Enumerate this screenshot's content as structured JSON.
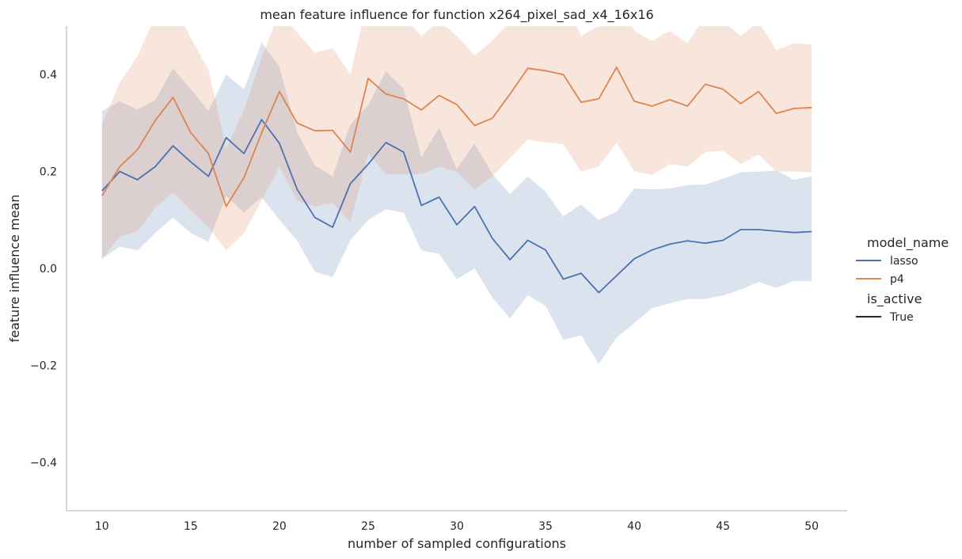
{
  "chart_data": {
    "type": "line",
    "title": "mean feature influence for function x264_pixel_sad_x4_16x16",
    "xlabel": "number of sampled configurations",
    "ylabel": "feature influence mean",
    "xlim": [
      8,
      52
    ],
    "ylim": [
      -0.5,
      0.5
    ],
    "xticks": [
      10,
      15,
      20,
      25,
      30,
      35,
      40,
      45,
      50
    ],
    "yticks": [
      -0.4,
      -0.2,
      0.0,
      0.2,
      0.4
    ],
    "ytick_labels": [
      "−0.4",
      "−0.2",
      "0.0",
      "0.2",
      "0.4"
    ],
    "grid": false,
    "legend": {
      "placement": "right",
      "hue_title": "model_name",
      "style_title": "is_active",
      "style_entries": [
        {
          "label": "True",
          "color": "#262626"
        }
      ]
    },
    "x": [
      10,
      11,
      12,
      13,
      14,
      15,
      16,
      17,
      18,
      19,
      20,
      21,
      22,
      23,
      24,
      25,
      26,
      27,
      28,
      29,
      30,
      31,
      32,
      33,
      34,
      35,
      36,
      37,
      38,
      39,
      40,
      41,
      42,
      43,
      44,
      45,
      46,
      47,
      48,
      49,
      50
    ],
    "series": [
      {
        "name": "lasso",
        "color": "#4c72b0",
        "values": [
          0.16,
          0.2,
          0.183,
          0.21,
          0.253,
          0.22,
          0.19,
          0.27,
          0.237,
          0.307,
          0.258,
          0.163,
          0.105,
          0.085,
          0.175,
          0.215,
          0.26,
          0.24,
          0.13,
          0.147,
          0.09,
          0.128,
          0.062,
          0.018,
          0.058,
          0.038,
          -0.022,
          -0.01,
          -0.05,
          -0.015,
          0.02,
          0.038,
          0.05,
          0.057,
          0.052,
          0.058,
          0.08,
          0.08,
          0.077,
          0.074,
          0.076
        ],
        "lower": [
          0.02,
          0.045,
          0.037,
          0.073,
          0.105,
          0.073,
          0.055,
          0.15,
          0.115,
          0.147,
          0.1,
          0.057,
          -0.007,
          -0.018,
          0.058,
          0.1,
          0.122,
          0.115,
          0.037,
          0.03,
          -0.022,
          0.0,
          -0.06,
          -0.103,
          -0.055,
          -0.077,
          -0.147,
          -0.138,
          -0.197,
          -0.143,
          -0.113,
          -0.082,
          -0.072,
          -0.063,
          -0.063,
          -0.056,
          -0.044,
          -0.028,
          -0.04,
          -0.026,
          -0.026
        ],
        "upper": [
          0.325,
          0.345,
          0.328,
          0.347,
          0.413,
          0.37,
          0.325,
          0.4,
          0.37,
          0.466,
          0.416,
          0.28,
          0.213,
          0.19,
          0.297,
          0.337,
          0.407,
          0.37,
          0.23,
          0.29,
          0.205,
          0.258,
          0.195,
          0.153,
          0.19,
          0.158,
          0.107,
          0.132,
          0.1,
          0.117,
          0.165,
          0.163,
          0.165,
          0.172,
          0.173,
          0.185,
          0.198,
          0.2,
          0.202,
          0.183,
          0.19
        ]
      },
      {
        "name": "p4",
        "color": "#dd8452",
        "values": [
          0.15,
          0.21,
          0.245,
          0.305,
          0.353,
          0.28,
          0.237,
          0.128,
          0.187,
          0.28,
          0.365,
          0.3,
          0.284,
          0.285,
          0.24,
          0.392,
          0.36,
          0.35,
          0.327,
          0.357,
          0.338,
          0.295,
          0.31,
          0.36,
          0.413,
          0.408,
          0.4,
          0.343,
          0.35,
          0.415,
          0.345,
          0.335,
          0.348,
          0.335,
          0.38,
          0.37,
          0.34,
          0.365,
          0.32,
          0.33,
          0.332
        ],
        "lower": [
          0.02,
          0.065,
          0.077,
          0.125,
          0.157,
          0.12,
          0.085,
          0.037,
          0.073,
          0.14,
          0.21,
          0.14,
          0.128,
          0.135,
          0.095,
          0.237,
          0.195,
          0.195,
          0.195,
          0.21,
          0.2,
          0.163,
          0.19,
          0.228,
          0.266,
          0.26,
          0.256,
          0.2,
          0.21,
          0.26,
          0.2,
          0.193,
          0.215,
          0.21,
          0.24,
          0.243,
          0.215,
          0.235,
          0.2,
          0.2,
          0.198
        ],
        "upper": [
          0.298,
          0.383,
          0.438,
          0.52,
          0.55,
          0.476,
          0.41,
          0.247,
          0.327,
          0.435,
          0.53,
          0.487,
          0.445,
          0.455,
          0.4,
          0.56,
          0.55,
          0.52,
          0.48,
          0.51,
          0.48,
          0.44,
          0.47,
          0.51,
          0.56,
          0.56,
          0.56,
          0.48,
          0.5,
          0.56,
          0.49,
          0.47,
          0.49,
          0.465,
          0.52,
          0.51,
          0.48,
          0.51,
          0.45,
          0.465,
          0.462
        ]
      }
    ]
  }
}
